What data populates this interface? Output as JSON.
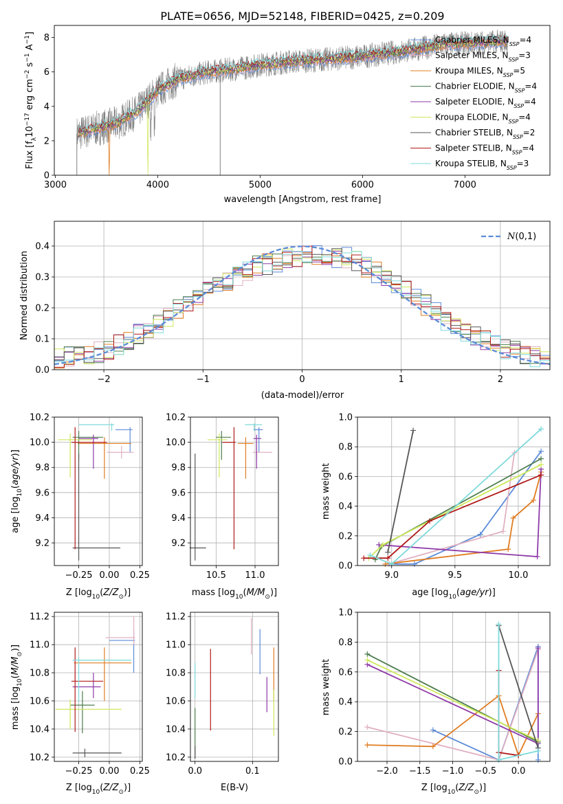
{
  "figure": {
    "title": "PLATE=0656, MJD=52148, FIBERID=0425, z=0.209"
  },
  "colors": {
    "series": [
      "#5b8bd8",
      "#e0b0c0",
      "#e07c22",
      "#4e7d4e",
      "#8e3aa8",
      "#cde85a",
      "#555555",
      "#b01818",
      "#7ed9da"
    ],
    "data_spectrum": "#808080",
    "grid": "#b0b0b0",
    "gaussian": "#5b8bd8"
  },
  "chart_data": [
    {
      "id": "spectrum",
      "type": "line",
      "xlabel": "wavelength [Angstrom, rest frame]",
      "ylabel": "Flux [f_λ 10^-17 erg cm^-2 s^-1 A^-1]",
      "xlim": [
        2990,
        7830
      ],
      "ylim": [
        0,
        8.7
      ],
      "xticks": [
        3000,
        4000,
        5000,
        6000,
        7000
      ],
      "yticks": [
        0,
        2,
        4,
        6,
        8
      ],
      "grid": false,
      "legend_position": "top-right",
      "observed_continuum": {
        "x": [
          3210,
          3400,
          3600,
          3800,
          4000,
          4200,
          4500,
          4800,
          5000,
          5300,
          5600,
          6000,
          6400,
          6800,
          7200,
          7420
        ],
        "y": [
          2.4,
          2.7,
          3.0,
          3.7,
          4.9,
          5.6,
          6.0,
          6.2,
          6.4,
          6.6,
          6.7,
          6.9,
          7.2,
          7.6,
          7.7,
          7.8
        ]
      },
      "series": [
        {
          "name": "Chabrier MILES, N_SSP=4"
        },
        {
          "name": "Salpeter MILES, N_SSP=3"
        },
        {
          "name": "Kroupa MILES, N_SSP=5"
        },
        {
          "name": "Chabrier ELODIE, N_SSP=4"
        },
        {
          "name": "Salpeter ELODIE, N_SSP=4"
        },
        {
          "name": "Kroupa ELODIE, N_SSP=4"
        },
        {
          "name": "Chabrier STELIB, N_SSP=2"
        },
        {
          "name": "Salpeter STELIB, N_SSP=4"
        },
        {
          "name": "Kroupa STELIB, N_SSP=3"
        }
      ]
    },
    {
      "id": "residuals",
      "type": "histogram",
      "xlabel": "(data-model)/error",
      "ylabel": "Normed distribution",
      "xlim": [
        -2.5,
        2.5
      ],
      "ylim": [
        0,
        0.48
      ],
      "xticks": [
        -2,
        -1,
        0,
        1,
        2
      ],
      "yticks": [
        0.0,
        0.1,
        0.2,
        0.3,
        0.4
      ],
      "grid": true,
      "legend_position": "top-right",
      "legend_label": "N(0,1)",
      "bin_width": 0.1,
      "envelope": {
        "x": [
          -2.5,
          -2.0,
          -1.5,
          -1.0,
          -0.5,
          0.0,
          0.5,
          1.0,
          1.5,
          2.0,
          2.5
        ],
        "y": [
          0.035,
          0.06,
          0.14,
          0.25,
          0.33,
          0.37,
          0.36,
          0.27,
          0.15,
          0.07,
          0.03
        ]
      }
    },
    {
      "id": "age-vs-Z",
      "type": "errorbar",
      "xlabel": "Z [log10(Z/Z_sun)]",
      "ylabel": "age [log10(age/yr)]",
      "xlim": [
        -0.45,
        0.27
      ],
      "ylim": [
        9.02,
        10.2
      ],
      "xticks": [
        -0.25,
        0.0,
        0.25
      ],
      "xticklabels": [
        "−0.25",
        "0.00",
        "0.25"
      ],
      "yticks": [
        9.2,
        9.4,
        9.6,
        9.8,
        10.0,
        10.2
      ],
      "grid": true,
      "points": [
        {
          "x": 0.17,
          "y": 10.1,
          "xerr": [
            0.12,
            0.02
          ],
          "yerr": [
            0.18,
            0.02
          ]
        },
        {
          "x": 0.1,
          "y": 9.92,
          "xerr": [
            0.12,
            0.1
          ],
          "yerr": [
            0.05,
            0.05
          ]
        },
        {
          "x": -0.04,
          "y": 9.99,
          "xerr": [
            0.22,
            0.22
          ],
          "yerr": [
            0.28,
            0.05
          ]
        },
        {
          "x": -0.25,
          "y": 10.04,
          "xerr": [
            0.05,
            0.2
          ],
          "yerr": [
            0.18,
            0.05
          ]
        },
        {
          "x": -0.13,
          "y": 10.03,
          "xerr": [
            0.12,
            0.04
          ],
          "yerr": [
            0.24,
            0.03
          ]
        },
        {
          "x": -0.32,
          "y": 10.02,
          "xerr": [
            0.1,
            0.18
          ],
          "yerr": [
            0.3,
            0.05
          ]
        },
        {
          "x": -0.25,
          "y": 9.16,
          "xerr": [
            0.05,
            0.34
          ],
          "yerr": [
            0.1,
            0.75
          ]
        },
        {
          "x": -0.28,
          "y": 10.0,
          "xerr": [
            0.03,
            0.26
          ],
          "yerr": [
            0.85,
            0.12
          ]
        },
        {
          "x": 0.02,
          "y": 10.14,
          "xerr": [
            0.27,
            0.02
          ],
          "yerr": [
            0.05,
            0.01
          ]
        }
      ]
    },
    {
      "id": "age-vs-mass",
      "type": "errorbar",
      "xlabel": "mass [log10(M/M_sun)]",
      "ylabel": "",
      "xlim": [
        10.17,
        11.3
      ],
      "ylim": [
        9.02,
        10.2
      ],
      "xticks": [
        10.5,
        11.0
      ],
      "yticks": [
        9.2,
        9.4,
        9.6,
        9.8,
        10.0,
        10.2
      ],
      "grid": true,
      "points": [
        {
          "x": 11.05,
          "y": 10.1,
          "xerr": [
            0.07,
            0.05
          ],
          "yerr": [
            0.18,
            0.02
          ]
        },
        {
          "x": 11.02,
          "y": 9.92,
          "xerr": [
            0.05,
            0.2
          ],
          "yerr": [
            0.05,
            0.05
          ]
        },
        {
          "x": 10.88,
          "y": 9.99,
          "xerr": [
            0.1,
            0.1
          ],
          "yerr": [
            0.28,
            0.05
          ]
        },
        {
          "x": 10.57,
          "y": 10.04,
          "xerr": [
            0.07,
            0.12
          ],
          "yerr": [
            0.18,
            0.05
          ]
        },
        {
          "x": 11.02,
          "y": 10.03,
          "xerr": [
            0.04,
            0.06
          ],
          "yerr": [
            0.24,
            0.03
          ]
        },
        {
          "x": 10.54,
          "y": 10.02,
          "xerr": [
            0.15,
            0.1
          ],
          "yerr": [
            0.3,
            0.05
          ]
        },
        {
          "x": 10.23,
          "y": 9.16,
          "xerr": [
            0.07,
            0.14
          ],
          "yerr": [
            0.1,
            0.75
          ]
        },
        {
          "x": 10.73,
          "y": 10.0,
          "xerr": [
            0.15,
            0.02
          ],
          "yerr": [
            0.85,
            0.12
          ]
        },
        {
          "x": 10.99,
          "y": 10.14,
          "xerr": [
            0.12,
            0.1
          ],
          "yerr": [
            0.05,
            0.01
          ]
        }
      ]
    },
    {
      "id": "massweight-vs-age",
      "type": "line",
      "xlabel": "age [log10(age/yr)]",
      "ylabel": "mass weight",
      "xlim": [
        8.73,
        10.25
      ],
      "ylim": [
        0,
        1.0
      ],
      "xticks": [
        9.0,
        9.5,
        10.0
      ],
      "yticks": [
        0.0,
        0.2,
        0.4,
        0.6,
        0.8,
        1.0
      ],
      "grid": true,
      "series": [
        {
          "x": [
            8.98,
            9.18,
            9.7,
            10.18
          ],
          "y": [
            0.01,
            0.01,
            0.21,
            0.77
          ]
        },
        {
          "x": [
            8.98,
            9.88,
            9.97
          ],
          "y": [
            0.01,
            0.23,
            0.76
          ]
        },
        {
          "x": [
            8.95,
            9.92,
            9.96,
            10.12,
            10.18
          ],
          "y": [
            0.01,
            0.11,
            0.32,
            0.44,
            0.63
          ]
        },
        {
          "x": [
            8.87,
            8.92,
            10.18
          ],
          "y": [
            0.04,
            0.13,
            0.72
          ]
        },
        {
          "x": [
            8.9,
            10.15,
            10.18
          ],
          "y": [
            0.14,
            0.06,
            0.65
          ]
        },
        {
          "x": [
            8.82,
            8.93,
            10.18
          ],
          "y": [
            0.05,
            0.14,
            0.68
          ]
        },
        {
          "x": [
            8.97,
            9.17
          ],
          "y": [
            0.09,
            0.91
          ]
        },
        {
          "x": [
            8.78,
            8.97,
            9.3,
            10.18
          ],
          "y": [
            0.05,
            0.05,
            0.3,
            0.61
          ]
        },
        {
          "x": [
            8.83,
            9.0,
            10.18
          ],
          "y": [
            0.07,
            0.01,
            0.92
          ]
        }
      ]
    },
    {
      "id": "mass-vs-Z",
      "type": "errorbar",
      "xlabel": "Z [log10(Z/Z_sun)]",
      "ylabel": "mass [log10(M/M_sun)]",
      "xlim": [
        -0.45,
        0.27
      ],
      "ylim": [
        10.17,
        11.23
      ],
      "xticks": [
        -0.25,
        0.0,
        0.25
      ],
      "xticklabels": [
        "−0.25",
        "0.00",
        "0.25"
      ],
      "yticks": [
        10.2,
        10.4,
        10.6,
        10.8,
        11.0,
        11.2
      ],
      "grid": true,
      "points": [
        {
          "x": 0.2,
          "y": 11.03,
          "xerr": [
            0.2,
            0.01
          ],
          "yerr": [
            0.23,
            0.07
          ]
        },
        {
          "x": 0.2,
          "y": 11.05,
          "xerr": [
            0.23,
            0.01
          ],
          "yerr": [
            0.05,
            0.15
          ]
        },
        {
          "x": -0.04,
          "y": 10.87,
          "xerr": [
            0.25,
            0.22
          ],
          "yerr": [
            0.27,
            0.11
          ]
        },
        {
          "x": -0.22,
          "y": 10.57,
          "xerr": [
            0.1,
            0.1
          ],
          "yerr": [
            0.2,
            0.1
          ]
        },
        {
          "x": -0.13,
          "y": 10.7,
          "xerr": [
            0.17,
            0.06
          ],
          "yerr": [
            0.08,
            0.1
          ]
        },
        {
          "x": -0.32,
          "y": 10.54,
          "xerr": [
            0.12,
            0.42
          ],
          "yerr": [
            0.14,
            0.07
          ]
        },
        {
          "x": -0.2,
          "y": 10.23,
          "xerr": [
            0.1,
            0.3
          ],
          "yerr": [
            0.03,
            0.03
          ]
        },
        {
          "x": -0.28,
          "y": 10.74,
          "xerr": [
            0.03,
            0.23
          ],
          "yerr": [
            0.36,
            0.24
          ]
        },
        {
          "x": -0.25,
          "y": 10.89,
          "xerr": [
            0.05,
            0.43
          ],
          "yerr": [
            0.3,
            0.02
          ]
        }
      ]
    },
    {
      "id": "mass-vs-ebv",
      "type": "errorbar",
      "xlabel": "E(B-V)",
      "ylabel": "",
      "xlim": [
        -0.008,
        0.145
      ],
      "ylim": [
        10.17,
        11.23
      ],
      "xticks": [
        0.0,
        0.1
      ],
      "yticks": [
        10.2,
        10.4,
        10.6,
        10.8,
        11.0,
        11.2
      ],
      "grid": true,
      "vlines": [
        {
          "x": 0.113,
          "ymin": 10.79,
          "ymax": 11.11
        },
        {
          "x": 0.098,
          "ymin": 10.93,
          "ymax": 11.19
        },
        {
          "x": 0.137,
          "ymin": 10.6,
          "ymax": 10.98
        },
        {
          "x": 0.0,
          "ymin": 10.19,
          "ymax": 10.55
        },
        {
          "x": 0.125,
          "ymin": 10.52,
          "ymax": 10.77
        },
        {
          "x": 0.137,
          "ymin": 10.35,
          "ymax": 10.68
        },
        {
          "x": 0.0,
          "ymin": 10.19,
          "ymax": 10.28
        },
        {
          "x": 0.027,
          "ymin": 10.39,
          "ymax": 10.97
        },
        {
          "x": 0.0,
          "ymin": 10.62,
          "ymax": 10.87
        }
      ]
    },
    {
      "id": "massweight-vs-Z",
      "type": "line",
      "xlabel": "Z [log10(Z/Z_sun)]",
      "ylabel": "mass weight",
      "xlim": [
        -2.45,
        0.48
      ],
      "ylim": [
        0,
        1.0
      ],
      "xticks": [
        -2.0,
        -1.5,
        -1.0,
        -0.5,
        0.0
      ],
      "xticklabels": [
        "−2.0",
        "−1.5",
        "−1.0",
        "−0.5",
        "0.0"
      ],
      "yticks": [
        0.0,
        0.2,
        0.4,
        0.6,
        0.8,
        1.0
      ],
      "grid": true,
      "series": [
        {
          "x": [
            -1.3,
            -0.3,
            0.3,
            0.3
          ],
          "y": [
            0.21,
            0.01,
            0.77,
            0.01
          ]
        },
        {
          "x": [
            -2.3,
            -0.3,
            0.3
          ],
          "y": [
            0.23,
            0.01,
            0.75
          ]
        },
        {
          "x": [
            -2.3,
            -1.3,
            -0.3,
            0.0,
            0.3
          ],
          "y": [
            0.11,
            0.1,
            0.44,
            0.04,
            0.32
          ]
        },
        {
          "x": [
            -2.3,
            0.3
          ],
          "y": [
            0.72,
            0.13
          ]
        },
        {
          "x": [
            -2.3,
            0.3,
            0.3
          ],
          "y": [
            0.65,
            0.12,
            0.76
          ]
        },
        {
          "x": [
            -2.3,
            0.3
          ],
          "y": [
            0.68,
            0.14
          ]
        },
        {
          "x": [
            -0.3,
            0.3
          ],
          "y": [
            0.91,
            0.09
          ]
        },
        {
          "x": [
            -0.3,
            -0.3,
            0.0
          ],
          "y": [
            0.61,
            0.06,
            0.04
          ]
        },
        {
          "x": [
            -0.3,
            -0.3,
            0.3
          ],
          "y": [
            0.92,
            0.01,
            0.07
          ]
        }
      ]
    }
  ]
}
